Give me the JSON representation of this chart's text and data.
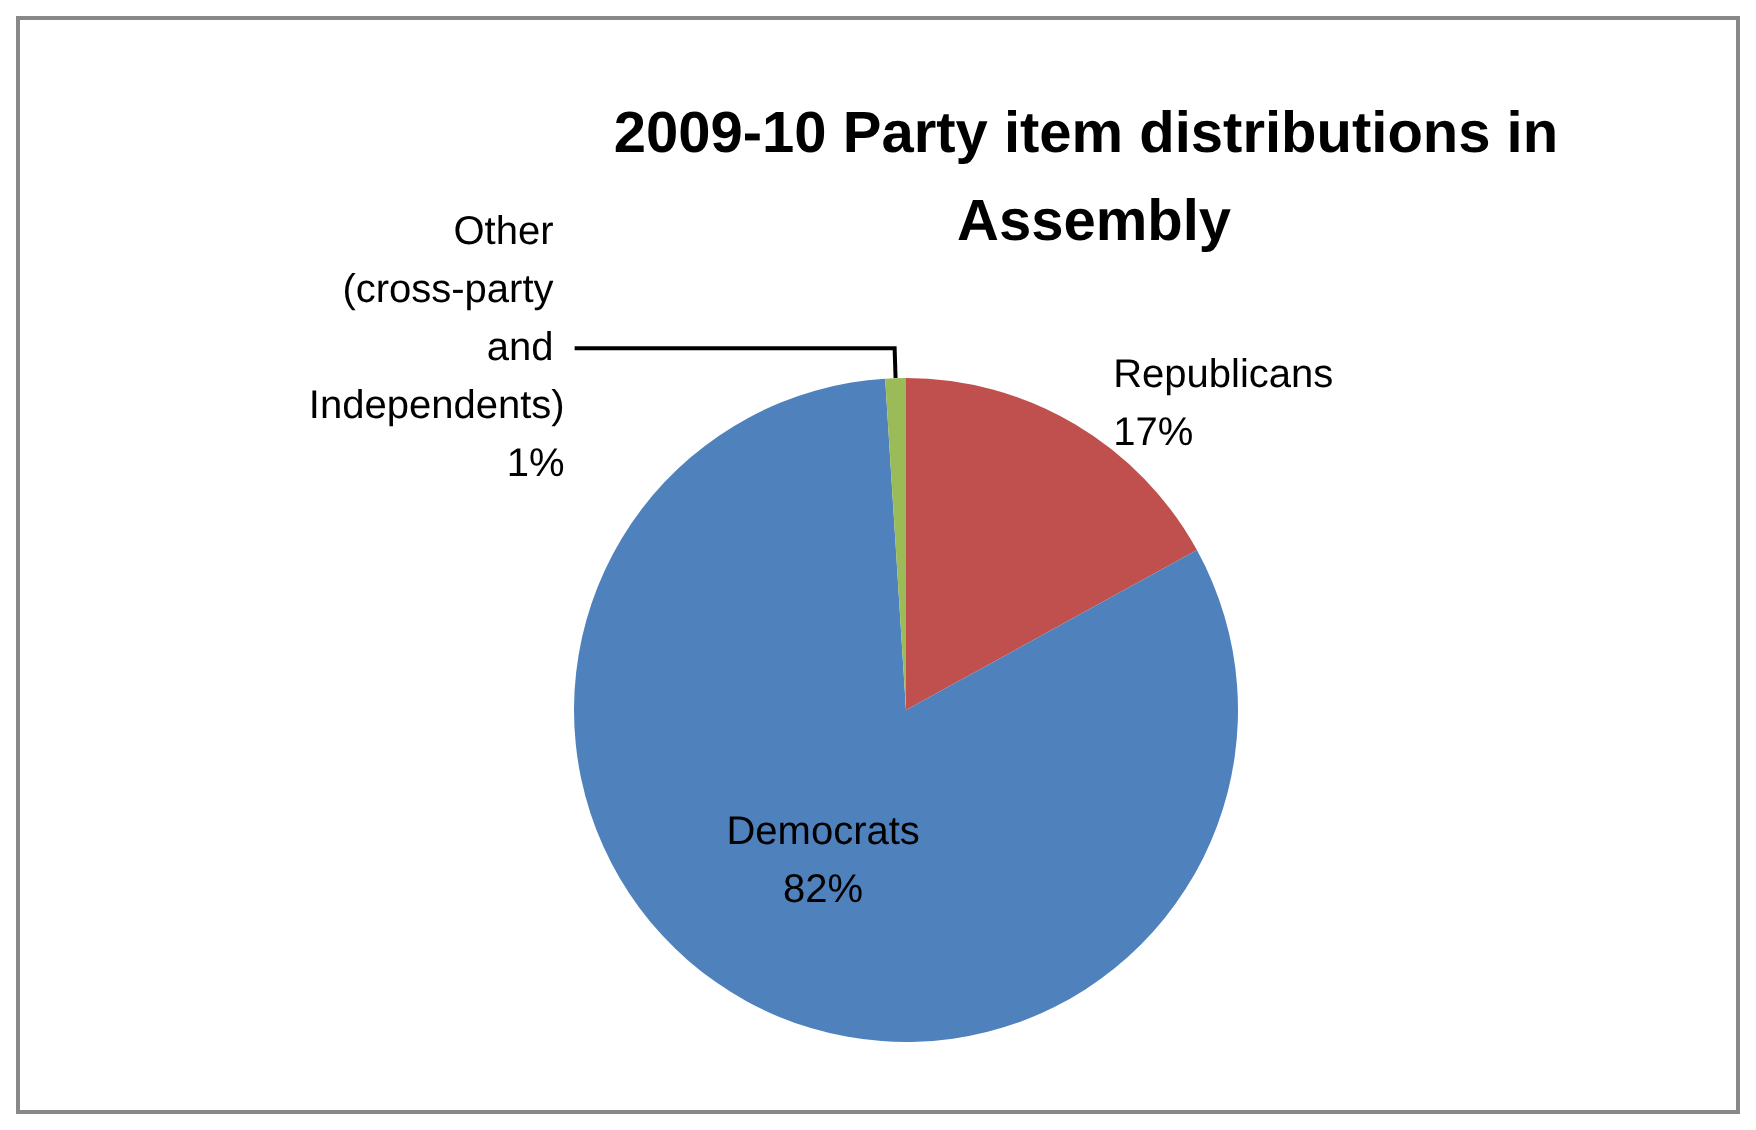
{
  "chart_data": {
    "type": "pie",
    "title": "2009-10 Party item distributions in Assembly",
    "categories": [
      "Republicans",
      "Democrats",
      "Other (cross-party and Independents)"
    ],
    "values": [
      17,
      82,
      1
    ],
    "colors": [
      "#c0504d",
      "#4f81bd",
      "#9bbb59"
    ],
    "value_labels": [
      "17%",
      "82%",
      "1%"
    ],
    "legend": false
  }
}
